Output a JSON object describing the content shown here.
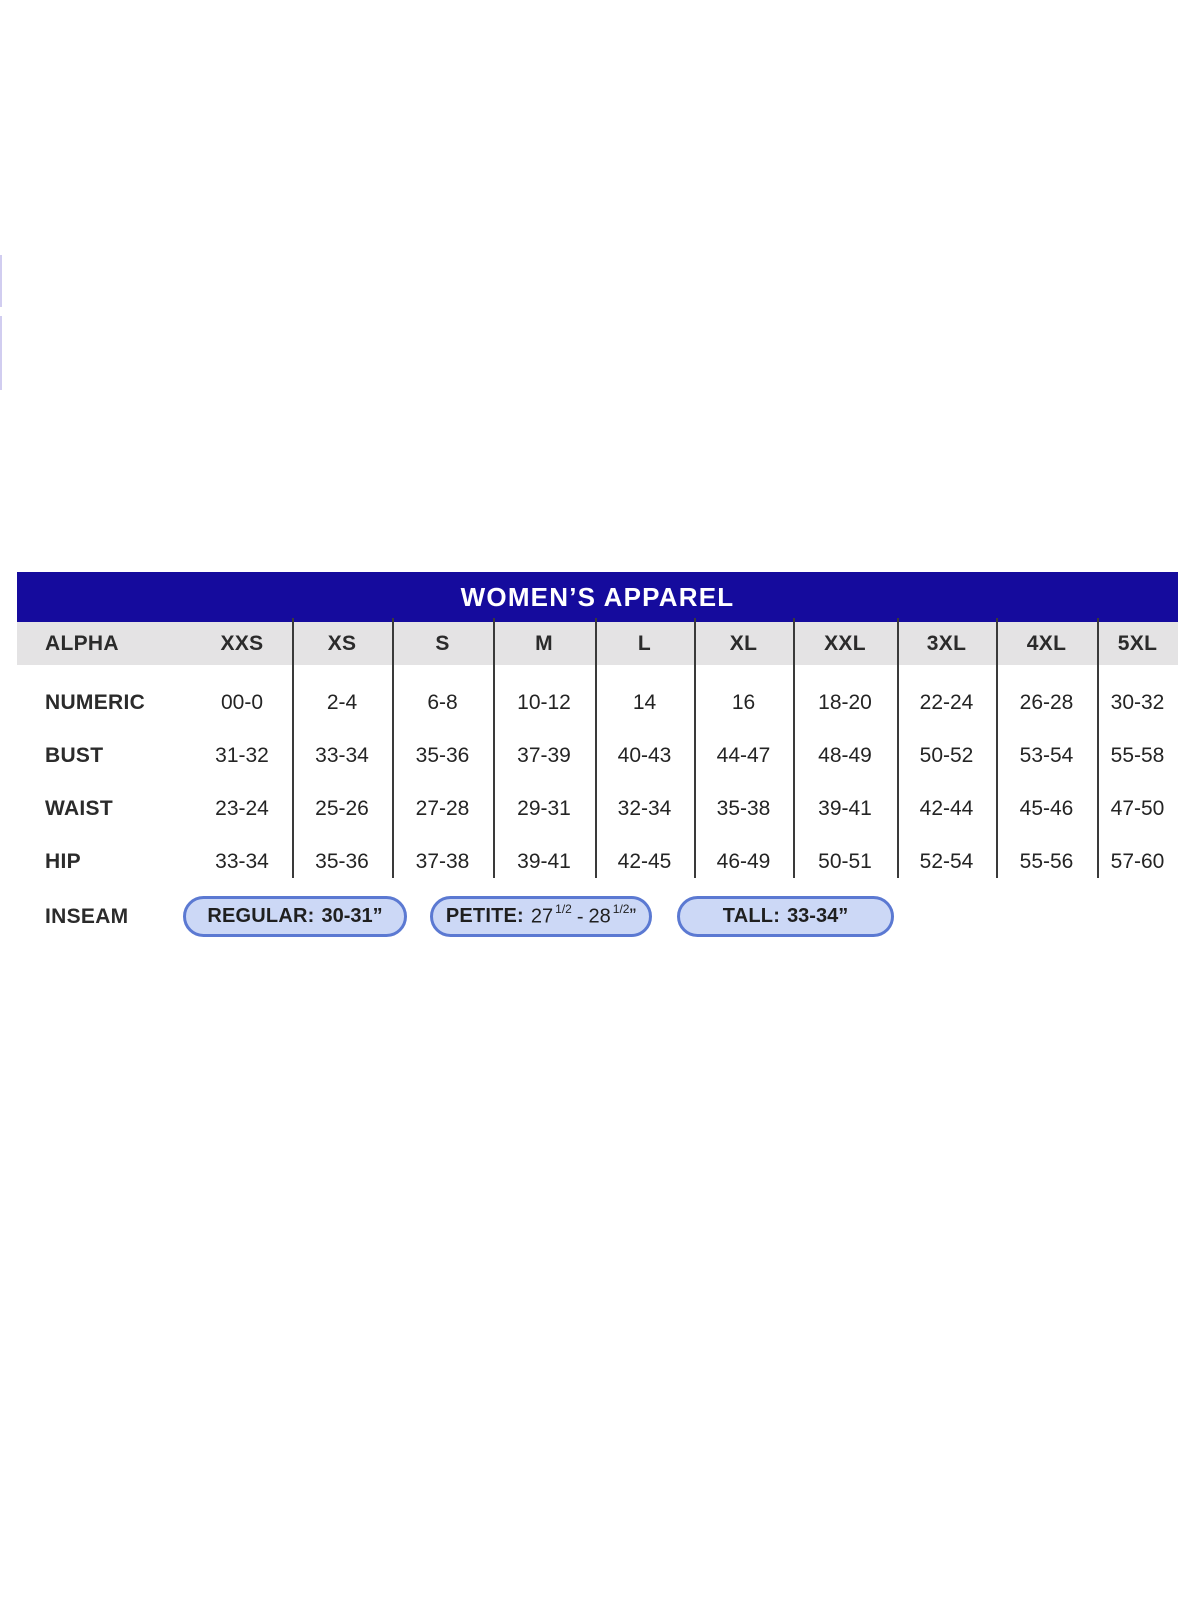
{
  "decor": {
    "left_edge_color": "#c9c4ed"
  },
  "chart": {
    "title": "WOMEN’S APPAREL",
    "columns": [
      "ALPHA",
      "XXS",
      "XS",
      "S",
      "M",
      "L",
      "XL",
      "XXL",
      "3XL",
      "4XL",
      "5XL"
    ],
    "rows": [
      {
        "label": "NUMERIC",
        "values": [
          "00-0",
          "2-4",
          "6-8",
          "10-12",
          "14",
          "16",
          "18-20",
          "22-24",
          "26-28",
          "30-32"
        ]
      },
      {
        "label": "BUST",
        "values": [
          "31-32",
          "33-34",
          "35-36",
          "37-39",
          "40-43",
          "44-47",
          "48-49",
          "50-52",
          "53-54",
          "55-58"
        ]
      },
      {
        "label": "WAIST",
        "values": [
          "23-24",
          "25-26",
          "27-28",
          "29-31",
          "32-34",
          "35-38",
          "39-41",
          "42-44",
          "45-46",
          "47-50"
        ]
      },
      {
        "label": "HIP",
        "values": [
          "33-34",
          "35-36",
          "37-38",
          "39-41",
          "42-45",
          "46-49",
          "50-51",
          "52-54",
          "55-56",
          "57-60"
        ]
      }
    ],
    "inseam": {
      "label": "INSEAM",
      "regular": {
        "label": "REGULAR:",
        "value": "30-31”"
      },
      "petite": {
        "label": "PETITE:",
        "num1": "27",
        "frac1": "1/2",
        "dash": "-",
        "num2": "28",
        "frac2": "1/2",
        "quote": "”"
      },
      "tall": {
        "label": "TALL:",
        "value": "33-34”"
      }
    },
    "colors": {
      "title_bar": "#150b9d",
      "header_row": "#e4e3e4",
      "divider": "#3a3a3a",
      "pill_fill": "#ccd8f6",
      "pill_border": "#5b79d2"
    }
  }
}
